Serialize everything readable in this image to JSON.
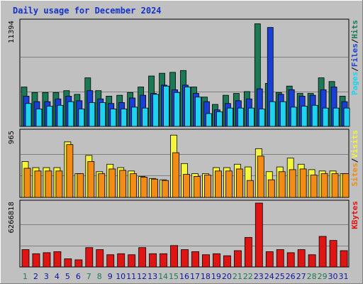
{
  "chart_title": "Daily usage for December 2024",
  "colors": {
    "hits": "#1b7a55",
    "files": "#1a3fd6",
    "pages": "#1ed2f0",
    "visits": "#f5f53c",
    "sites": "#f28c14",
    "kbytes": "#e11414",
    "weekend_day": "#1b7a55",
    "weekday": "#0a14a0"
  },
  "chart_data": [
    {
      "type": "bar",
      "title": "Daily usage for December 2024",
      "categories": [
        "1",
        "2",
        "3",
        "4",
        "5",
        "6",
        "7",
        "8",
        "9",
        "10",
        "11",
        "12",
        "13",
        "14",
        "15",
        "16",
        "17",
        "18",
        "19",
        "20",
        "21",
        "22",
        "23",
        "24",
        "25",
        "26",
        "27",
        "28",
        "29",
        "30",
        "31"
      ],
      "weekend_days": [
        "1",
        "7",
        "8",
        "14",
        "15",
        "21",
        "22",
        "28",
        "29"
      ],
      "y_max_label": "11394",
      "ylim": [
        0,
        11394
      ],
      "label_parts": [
        "Pages",
        "/",
        "Files",
        "/",
        "Hits"
      ],
      "series": [
        {
          "name": "Hits",
          "values": [
            4300,
            3700,
            3700,
            3700,
            3900,
            3500,
            5300,
            3900,
            3300,
            3400,
            3700,
            4300,
            5500,
            5800,
            5900,
            6100,
            4300,
            3200,
            2400,
            3400,
            3600,
            3800,
            11200,
            4700,
            3700,
            4400,
            3600,
            3600,
            5300,
            4900,
            3300
          ]
        },
        {
          "name": "Files",
          "values": [
            3300,
            2700,
            2700,
            3000,
            3300,
            2800,
            3900,
            3000,
            2500,
            2600,
            3100,
            3400,
            3600,
            4500,
            4000,
            4500,
            3600,
            2700,
            1800,
            2500,
            2800,
            3000,
            4100,
            10800,
            3500,
            4000,
            3300,
            3400,
            4000,
            4300,
            2700
          ]
        },
        {
          "name": "Pages",
          "values": [
            2500,
            1900,
            2200,
            2300,
            2700,
            1900,
            2600,
            2600,
            1900,
            1900,
            2100,
            2000,
            3500,
            4400,
            3700,
            4300,
            3200,
            1400,
            1600,
            2000,
            2000,
            2000,
            1900,
            2700,
            2700,
            2100,
            2200,
            2300,
            2000,
            2000,
            2000
          ]
        }
      ]
    },
    {
      "type": "bar",
      "categories": [
        "1",
        "2",
        "3",
        "4",
        "5",
        "6",
        "7",
        "8",
        "9",
        "10",
        "11",
        "12",
        "13",
        "14",
        "15",
        "16",
        "17",
        "18",
        "19",
        "20",
        "21",
        "22",
        "23",
        "24",
        "25",
        "26",
        "27",
        "28",
        "29",
        "30",
        "31"
      ],
      "y_max_label": "965",
      "ylim": [
        0,
        965
      ],
      "label_parts": [
        "Sites",
        "/",
        "Visits"
      ],
      "series": [
        {
          "name": "Visits",
          "values": [
            530,
            440,
            440,
            440,
            820,
            350,
            620,
            380,
            490,
            440,
            390,
            310,
            280,
            260,
            920,
            500,
            350,
            350,
            440,
            440,
            490,
            450,
            720,
            380,
            450,
            580,
            490,
            410,
            390,
            390,
            350
          ]
        },
        {
          "name": "Sites",
          "values": [
            430,
            390,
            390,
            390,
            780,
            350,
            530,
            350,
            420,
            400,
            350,
            300,
            270,
            250,
            660,
            340,
            310,
            330,
            390,
            390,
            420,
            250,
            610,
            260,
            380,
            410,
            420,
            330,
            350,
            350,
            350
          ]
        }
      ]
    },
    {
      "type": "bar",
      "categories": [
        "1",
        "2",
        "3",
        "4",
        "5",
        "6",
        "7",
        "8",
        "9",
        "10",
        "11",
        "12",
        "13",
        "14",
        "15",
        "16",
        "17",
        "18",
        "19",
        "20",
        "21",
        "22",
        "23",
        "24",
        "25",
        "26",
        "27",
        "28",
        "29",
        "30",
        "31"
      ],
      "y_max_label": "6266818",
      "ylim": [
        0,
        6266818
      ],
      "label_parts": [
        "KBytes"
      ],
      "series": [
        {
          "name": "KBytes",
          "values": [
            1700000,
            1300000,
            1400000,
            1500000,
            800000,
            700000,
            1900000,
            1700000,
            1200000,
            1300000,
            1200000,
            1900000,
            1300000,
            1300000,
            2100000,
            1700000,
            1500000,
            1200000,
            1300000,
            1100000,
            1600000,
            2900000,
            6266818,
            1500000,
            1700000,
            1400000,
            1700000,
            1200000,
            3000000,
            2600000,
            1600000
          ]
        }
      ]
    }
  ]
}
